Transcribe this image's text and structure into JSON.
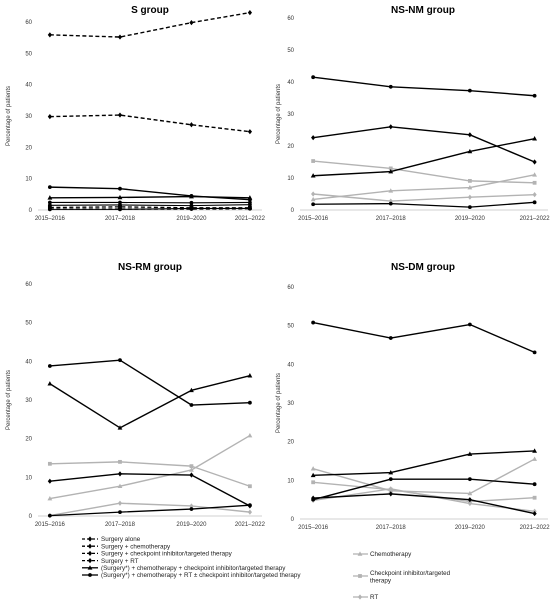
{
  "chart_data": [
    {
      "type": "line",
      "title": "S group",
      "ylabel": "Percentage of patients",
      "categories": [
        "2015–2016",
        "2017–2018",
        "2019–2020",
        "2021–2022"
      ],
      "ylim": [
        0,
        60
      ],
      "yticks": [
        0,
        10,
        20,
        30,
        40,
        50,
        60
      ],
      "series": [
        {
          "name": "Surgery alone",
          "values": [
            55.9,
            55.2,
            59.8,
            63.0
          ]
        },
        {
          "name": "Surgery + chemotherapy",
          "values": [
            29.8,
            30.3,
            27.2,
            25.0
          ]
        },
        {
          "name": "Surgery + checkpoint inhibitor/targeted therapy",
          "values": [
            0.8,
            1.0,
            0.7,
            0.7
          ]
        },
        {
          "name": "Surgery + RT",
          "values": [
            0.3,
            0.3,
            0.3,
            0.4
          ]
        },
        {
          "name": "(Surgery*) + chemotherapy + checkpoint inhibitor/targeted therapy",
          "values": [
            3.9,
            4.0,
            4.3,
            3.9
          ]
        },
        {
          "name": "(Surgery*) + chemotherapy + RT ± checkpoint inhibitor/targeted therapy",
          "values": [
            7.3,
            6.8,
            4.5,
            3.3
          ]
        },
        {
          "name": "Chemotherapy",
          "values": [
            1.5,
            1.6,
            1.4,
            1.7
          ]
        },
        {
          "name": "Checkpoint inhibitor/targeted therapy",
          "values": [
            0.2,
            0.2,
            0.5,
            0.5
          ]
        },
        {
          "name": "RT",
          "values": [
            2.4,
            2.4,
            2.3,
            2.4
          ]
        }
      ]
    },
    {
      "type": "line",
      "title": "NS-NM group",
      "ylabel": "Percentage of patients",
      "categories": [
        "2015–2016",
        "2017–2018",
        "2019–2020",
        "2021–2022"
      ],
      "ylim": [
        0,
        60
      ],
      "yticks": [
        0,
        10,
        20,
        30,
        40,
        50,
        60
      ],
      "series": [
        {
          "name": "(Surgery*) + chemotherapy + checkpoint inhibitor/targeted therapy",
          "values": [
            22.6,
            26.0,
            23.5,
            15.0
          ]
        },
        {
          "name": "(Surgery*) + chemotherapy + RT ± checkpoint inhibitor/targeted therapy",
          "values": [
            41.5,
            38.5,
            37.3,
            35.7
          ]
        },
        {
          "name": "Chemotherapy",
          "values": [
            10.7,
            12.0,
            18.3,
            22.3
          ]
        },
        {
          "name": "Checkpoint inhibitor/targeted therapy",
          "values": [
            1.8,
            2.0,
            0.9,
            2.4
          ]
        },
        {
          "name": "RT",
          "values": [
            15.3,
            13.0,
            9.1,
            8.5
          ]
        },
        {
          "name": "",
          "values": [
            3.3,
            6.0,
            7.0,
            11.0
          ]
        },
        {
          "name": "",
          "values": [
            5.0,
            2.8,
            4.0,
            4.8
          ]
        }
      ]
    },
    {
      "type": "line",
      "title": "NS-RM group",
      "ylabel": "Percentage of patients",
      "categories": [
        "2015–2016",
        "2017–2018",
        "2019–2020",
        "2021–2022"
      ],
      "ylim": [
        0,
        60
      ],
      "yticks": [
        0,
        10,
        20,
        30,
        40,
        50,
        60
      ],
      "series": [
        {
          "name": "(Surgery*) + chemotherapy + RT ± checkpoint inhibitor/targeted therapy",
          "values": [
            38.8,
            40.3,
            28.7,
            29.3
          ]
        },
        {
          "name": "(Surgery*) + chemotherapy + checkpoint inhibitor/targeted therapy",
          "values": [
            0.1,
            1.0,
            1.8,
            2.8
          ]
        },
        {
          "name": "Chemotherapy",
          "values": [
            34.2,
            22.8,
            32.5,
            36.3
          ]
        },
        {
          "name": "",
          "values": [
            9.0,
            10.9,
            10.6,
            2.6
          ]
        },
        {
          "name": "Checkpoint inhibitor/targeted therapy",
          "values": [
            4.5,
            7.7,
            11.9,
            20.8
          ]
        },
        {
          "name": "RT",
          "values": [
            13.5,
            14.0,
            12.9,
            7.7
          ]
        },
        {
          "name": "",
          "values": [
            0.1,
            3.3,
            2.6,
            1.0
          ]
        }
      ]
    },
    {
      "type": "line",
      "title": "NS-DM group",
      "ylabel": "Percentage of patients",
      "categories": [
        "2015–2016",
        "2017–2018",
        "2019–2020",
        "2021–2022"
      ],
      "ylim": [
        0,
        60
      ],
      "yticks": [
        0,
        10,
        20,
        30,
        40,
        50,
        60
      ],
      "series": [
        {
          "name": "(Surgery*) + chemotherapy + RT ± checkpoint inhibitor/targeted therapy",
          "values": [
            50.8,
            46.8,
            50.3,
            43.1
          ]
        },
        {
          "name": "Chemotherapy",
          "values": [
            11.3,
            12.0,
            16.8,
            17.6
          ]
        },
        {
          "name": "",
          "values": [
            5.0,
            10.3,
            10.3,
            9.0
          ]
        },
        {
          "name": "(Surgery*) + chemotherapy + checkpoint inhibitor/targeted therapy",
          "values": [
            5.4,
            6.5,
            5.0,
            1.4
          ]
        },
        {
          "name": "RT",
          "values": [
            13.0,
            7.3,
            6.6,
            15.5
          ]
        },
        {
          "name": "Checkpoint inhibitor/targeted therapy",
          "values": [
            9.5,
            7.6,
            4.5,
            5.5
          ]
        },
        {
          "name": "",
          "values": [
            4.8,
            7.8,
            4.0,
            2.0
          ]
        }
      ]
    }
  ],
  "legend": {
    "left": [
      {
        "label": "Surgery alone",
        "color": "#000000",
        "dash": "dashed"
      },
      {
        "label": "Surgery + chemotherapy",
        "color": "#000000",
        "dash": "dashed"
      },
      {
        "label": "Surgery + checkpoint inhibitor/targeted therapy",
        "color": "#000000",
        "dash": "dashed"
      },
      {
        "label": "Surgery + RT",
        "color": "#000000",
        "dash": "dashed"
      },
      {
        "label": "(Surgery*) + chemotherapy + checkpoint inhibitor/targeted therapy",
        "color": "#000000",
        "dash": "solid"
      },
      {
        "label": "(Surgery*) + chemotherapy + RT ± checkpoint inhibitor/targeted therapy",
        "color": "#000000",
        "dash": "solid"
      }
    ],
    "right": [
      {
        "label": "Chemotherapy",
        "color": "#b3b3b3",
        "dash": "solid"
      },
      {
        "label": "Checkpoint inhibitor/targeted therapy",
        "color": "#b3b3b3",
        "dash": "solid"
      },
      {
        "label": "RT",
        "color": "#b3b3b3",
        "dash": "solid"
      }
    ]
  },
  "colors": {
    "dark": "#000000",
    "light": "#b3b3b3",
    "axis": "#d0d0d0"
  }
}
